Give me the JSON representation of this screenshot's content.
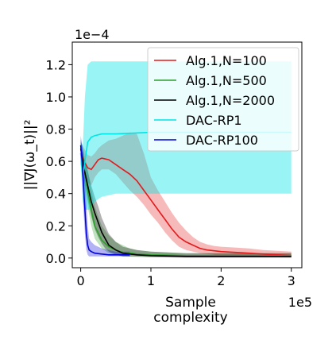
{
  "chart_data": {
    "type": "line",
    "title": "",
    "xlabel": "Sample\ncomplexity",
    "ylabel": "||∇J(ω_t)||²",
    "x_multiplier": "1e5",
    "y_multiplier": "1e−4",
    "xlim": [
      -0.12,
      3.15
    ],
    "ylim": [
      -0.06,
      1.34
    ],
    "xticks": [
      0,
      1,
      2,
      3
    ],
    "xtick_labels": [
      "0",
      "1",
      "2",
      "3"
    ],
    "yticks": [
      0.0,
      0.2,
      0.4,
      0.6,
      0.8,
      1.0,
      1.2
    ],
    "ytick_labels": [
      "0.0",
      "0.2",
      "0.4",
      "0.6",
      "0.8",
      "1.0",
      "1.2"
    ],
    "grid": false,
    "legend_position": "top-right",
    "series": [
      {
        "name": "Alg.1,N=100",
        "color": "#e41a1c",
        "x": [
          0,
          0.05,
          0.1,
          0.15,
          0.2,
          0.25,
          0.3,
          0.4,
          0.5,
          0.6,
          0.7,
          0.8,
          0.9,
          1.0,
          1.1,
          1.2,
          1.3,
          1.4,
          1.5,
          1.6,
          1.7,
          1.8,
          1.9,
          2.0,
          2.2,
          2.4,
          2.6,
          2.8,
          3.0
        ],
        "y": [
          0.65,
          0.6,
          0.56,
          0.55,
          0.58,
          0.61,
          0.62,
          0.61,
          0.58,
          0.55,
          0.52,
          0.48,
          0.42,
          0.36,
          0.3,
          0.24,
          0.18,
          0.13,
          0.1,
          0.08,
          0.06,
          0.05,
          0.045,
          0.04,
          0.035,
          0.03,
          0.025,
          0.02,
          0.015
        ],
        "lower": [
          0.58,
          0.52,
          0.47,
          0.45,
          0.5,
          0.53,
          0.55,
          0.55,
          0.52,
          0.47,
          0.42,
          0.38,
          0.33,
          0.27,
          0.22,
          0.16,
          0.11,
          0.07,
          0.05,
          0.04,
          0.03,
          0.025,
          0.02,
          0.015,
          0.01,
          0.008,
          0.005,
          0.004,
          0.003
        ],
        "upper": [
          0.72,
          0.68,
          0.64,
          0.63,
          0.65,
          0.68,
          0.7,
          0.73,
          0.74,
          0.76,
          0.78,
          0.77,
          0.65,
          0.5,
          0.42,
          0.35,
          0.28,
          0.22,
          0.17,
          0.13,
          0.1,
          0.085,
          0.075,
          0.07,
          0.065,
          0.06,
          0.05,
          0.045,
          0.04
        ]
      },
      {
        "name": "Alg.1,N=500",
        "color": "#2ca02c",
        "x": [
          0,
          0.05,
          0.1,
          0.15,
          0.2,
          0.3,
          0.4,
          0.5,
          0.6,
          0.7,
          0.8,
          1.0,
          1.5,
          2.0,
          2.5,
          3.0
        ],
        "y": [
          0.65,
          0.55,
          0.42,
          0.3,
          0.2,
          0.11,
          0.07,
          0.05,
          0.035,
          0.03,
          0.025,
          0.02,
          0.015,
          0.015,
          0.015,
          0.015
        ],
        "lower": [
          0.58,
          0.45,
          0.32,
          0.2,
          0.12,
          0.06,
          0.03,
          0.02,
          0.01,
          0.01,
          0.01,
          0.008,
          0.005,
          0.005,
          0.005,
          0.005
        ],
        "upper": [
          0.72,
          0.65,
          0.55,
          0.42,
          0.32,
          0.2,
          0.14,
          0.1,
          0.08,
          0.06,
          0.05,
          0.04,
          0.03,
          0.03,
          0.03,
          0.03
        ]
      },
      {
        "name": "Alg.1,N=2000",
        "color": "#000000",
        "x": [
          0,
          0.05,
          0.1,
          0.15,
          0.2,
          0.25,
          0.3,
          0.35,
          0.4,
          0.5,
          0.6,
          0.8,
          1.0,
          1.5,
          2.0,
          2.5,
          3.0
        ],
        "y": [
          0.68,
          0.55,
          0.45,
          0.35,
          0.28,
          0.22,
          0.16,
          0.12,
          0.08,
          0.05,
          0.03,
          0.02,
          0.015,
          0.01,
          0.01,
          0.01,
          0.01
        ],
        "lower": [
          0.62,
          0.48,
          0.36,
          0.26,
          0.18,
          0.13,
          0.09,
          0.06,
          0.04,
          0.02,
          0.01,
          0.008,
          0.005,
          0.003,
          0.003,
          0.003,
          0.003
        ],
        "upper": [
          0.74,
          0.62,
          0.54,
          0.45,
          0.38,
          0.32,
          0.25,
          0.2,
          0.15,
          0.1,
          0.07,
          0.05,
          0.04,
          0.03,
          0.03,
          0.03,
          0.03
        ]
      },
      {
        "name": "DAC-RP1",
        "color": "#00e5e5",
        "x": [
          0,
          0.03,
          0.06,
          0.1,
          0.15,
          0.2,
          0.3,
          0.5,
          1.0,
          2.0,
          3.0
        ],
        "y": [
          0.65,
          0.5,
          0.6,
          0.72,
          0.75,
          0.76,
          0.77,
          0.77,
          0.78,
          0.78,
          0.78
        ],
        "lower": [
          0.58,
          0.35,
          0.3,
          0.3,
          0.3,
          0.35,
          0.38,
          0.4,
          0.4,
          0.4,
          0.4
        ],
        "upper": [
          0.72,
          0.7,
          1.0,
          1.2,
          1.22,
          1.22,
          1.22,
          1.22,
          1.22,
          1.22,
          1.22
        ]
      },
      {
        "name": "DAC-RP100",
        "color": "#0000dd",
        "x": [
          0,
          0.02,
          0.04,
          0.06,
          0.08,
          0.1,
          0.12,
          0.15,
          0.2,
          0.3,
          0.4,
          0.5,
          0.6,
          0.7
        ],
        "y": [
          0.7,
          0.6,
          0.45,
          0.3,
          0.15,
          0.08,
          0.05,
          0.04,
          0.03,
          0.025,
          0.02,
          0.02,
          0.02,
          0.02
        ],
        "lower": [
          0.62,
          0.5,
          0.3,
          0.15,
          0.05,
          0.02,
          0.01,
          0.01,
          0.01,
          0.01,
          0.01,
          0.01,
          0.01,
          0.01
        ],
        "upper": [
          0.76,
          0.7,
          0.65,
          0.5,
          0.35,
          0.2,
          0.12,
          0.1,
          0.08,
          0.06,
          0.05,
          0.04,
          0.04,
          0.04
        ]
      }
    ]
  }
}
